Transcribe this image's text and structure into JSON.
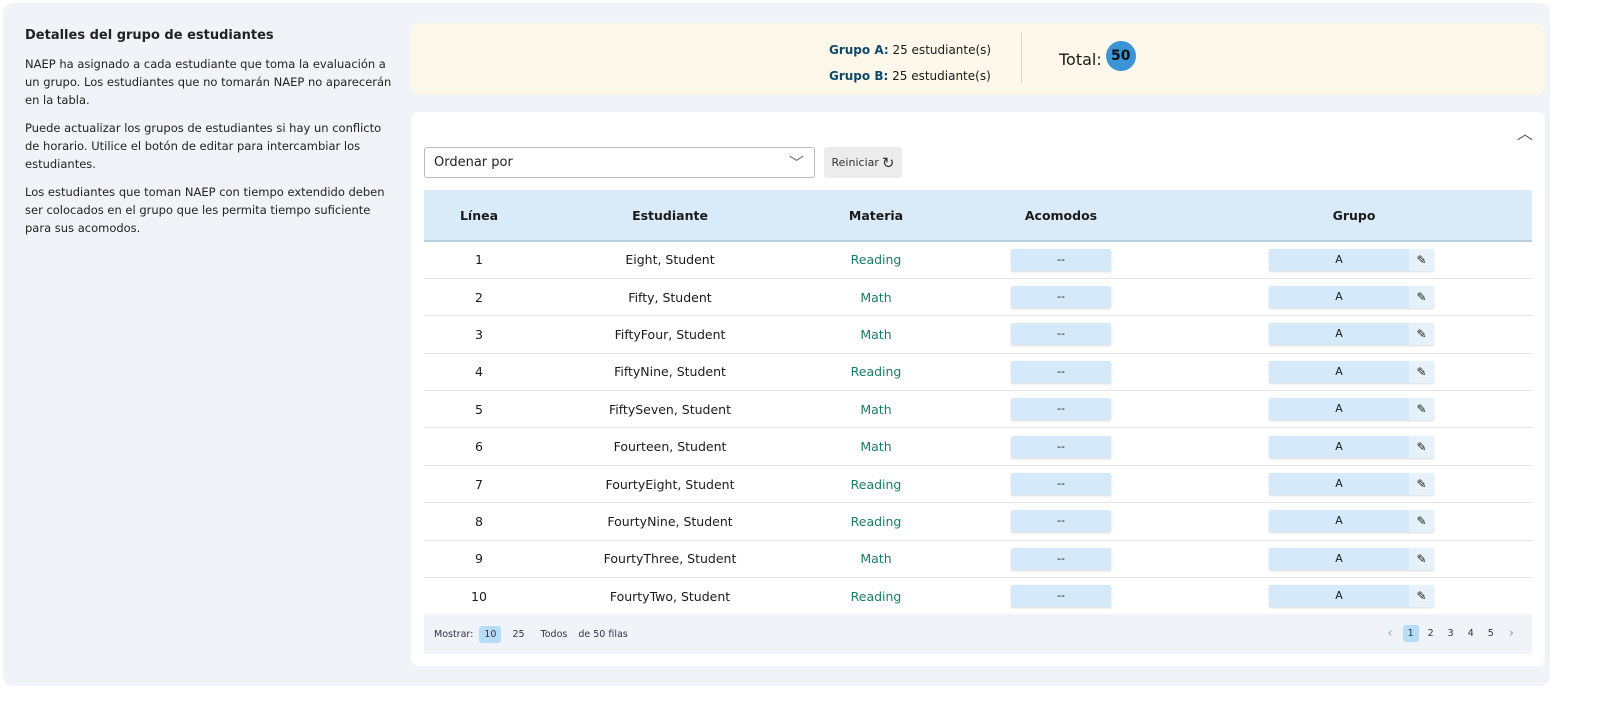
{
  "info": {
    "title": "Detalles del grupo de estudiantes",
    "paragraphs": [
      "NAEP ha asignado a cada estudiante que toma la evaluación a un grupo. Los estudiantes que no tomarán NAEP no aparecerán en la tabla.",
      "Puede actualizar los grupos de estudiantes si hay un conflicto de horario. Utilice el botón de editar para intercambiar los estudiantes.",
      "Los estudiantes que toman NAEP con tiempo extendido deben ser colocados en el grupo que les permita tiempo suficiente para sus acomodos."
    ]
  },
  "summary": {
    "group_a_label": "Grupo A:",
    "group_a_value": "25 estudiante(s)",
    "group_b_label": "Grupo B:",
    "group_b_value": "25 estudiante(s)",
    "total_label": "Total:",
    "total_value": "50"
  },
  "controls": {
    "sort_placeholder": "Ordenar por",
    "reset_label": "Reiniciar"
  },
  "table": {
    "headers": [
      "Línea",
      "Estudiante",
      "Materia",
      "Acomodos",
      "Grupo"
    ],
    "rows": [
      {
        "line": "1",
        "student": "Eight, Student",
        "subject": "Reading",
        "acc": "--",
        "group": "A"
      },
      {
        "line": "2",
        "student": "Fifty, Student",
        "subject": "Math",
        "acc": "--",
        "group": "A"
      },
      {
        "line": "3",
        "student": "FiftyFour, Student",
        "subject": "Math",
        "acc": "--",
        "group": "A"
      },
      {
        "line": "4",
        "student": "FiftyNine, Student",
        "subject": "Reading",
        "acc": "--",
        "group": "A"
      },
      {
        "line": "5",
        "student": "FiftySeven, Student",
        "subject": "Math",
        "acc": "--",
        "group": "A"
      },
      {
        "line": "6",
        "student": "Fourteen, Student",
        "subject": "Math",
        "acc": "--",
        "group": "A"
      },
      {
        "line": "7",
        "student": "FourtyEight, Student",
        "subject": "Reading",
        "acc": "--",
        "group": "A"
      },
      {
        "line": "8",
        "student": "FourtyNine, Student",
        "subject": "Reading",
        "acc": "--",
        "group": "A"
      },
      {
        "line": "9",
        "student": "FourtyThree, Student",
        "subject": "Math",
        "acc": "--",
        "group": "A"
      },
      {
        "line": "10",
        "student": "FourtyTwo, Student",
        "subject": "Reading",
        "acc": "--",
        "group": "A"
      }
    ]
  },
  "footer": {
    "show_label": "Mostrar:",
    "options": [
      "10",
      "25",
      "Todos"
    ],
    "active_option": "10",
    "rows_text": "de 50 filas",
    "pages": [
      "1",
      "2",
      "3",
      "4",
      "5"
    ],
    "active_page": "1"
  }
}
